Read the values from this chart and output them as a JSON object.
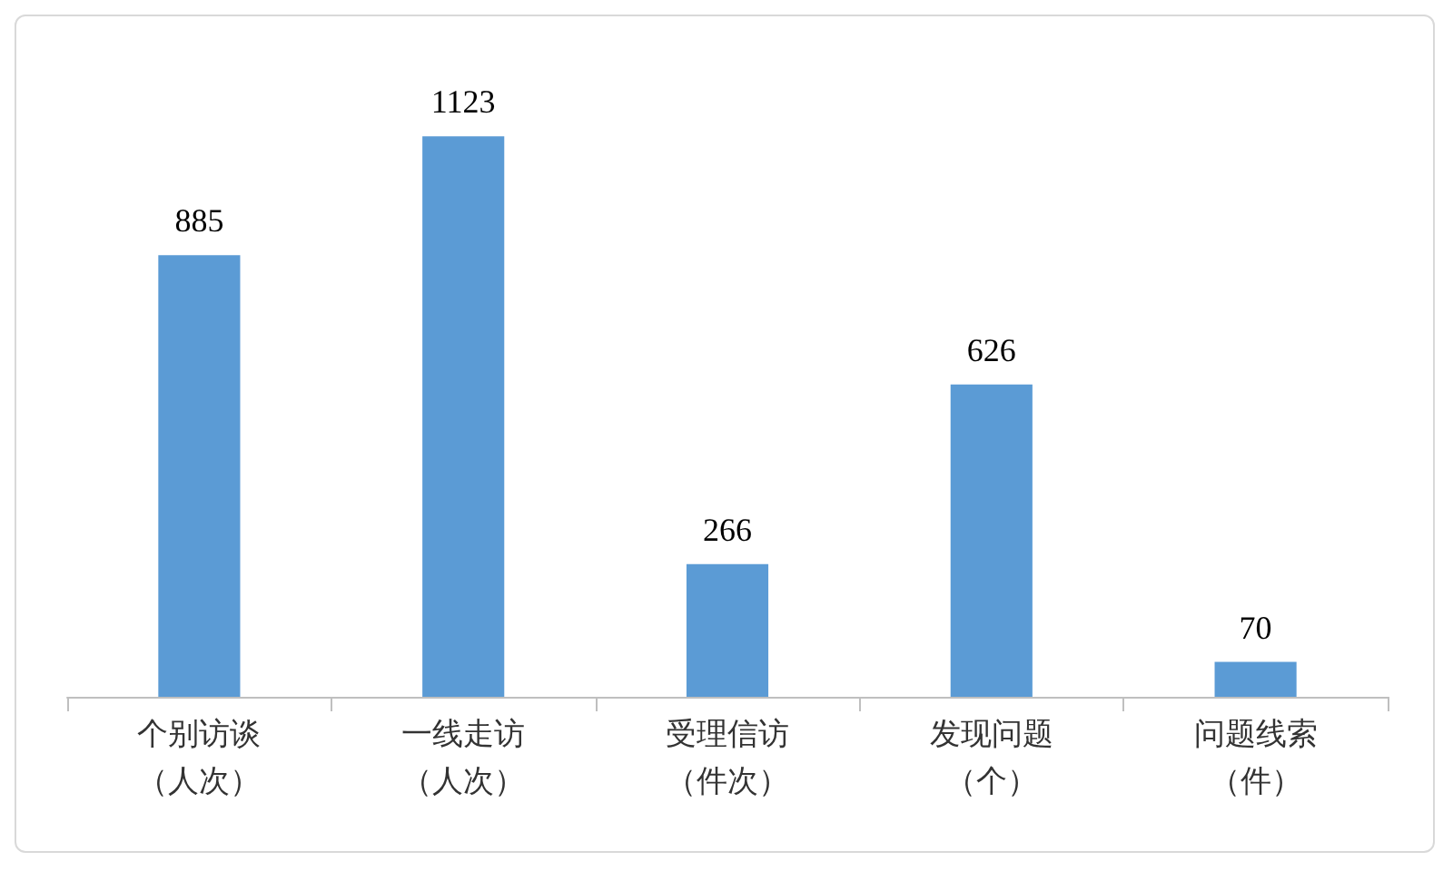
{
  "chart_data": {
    "type": "bar",
    "categories": [
      "个别访谈（人次）",
      "一线走访（人次）",
      "受理信访（件次）",
      "发现问题（个）",
      "问题线索（件）"
    ],
    "values": [
      885,
      1123,
      266,
      626,
      70
    ],
    "color": "#5b9bd5",
    "data_labels": true
  }
}
